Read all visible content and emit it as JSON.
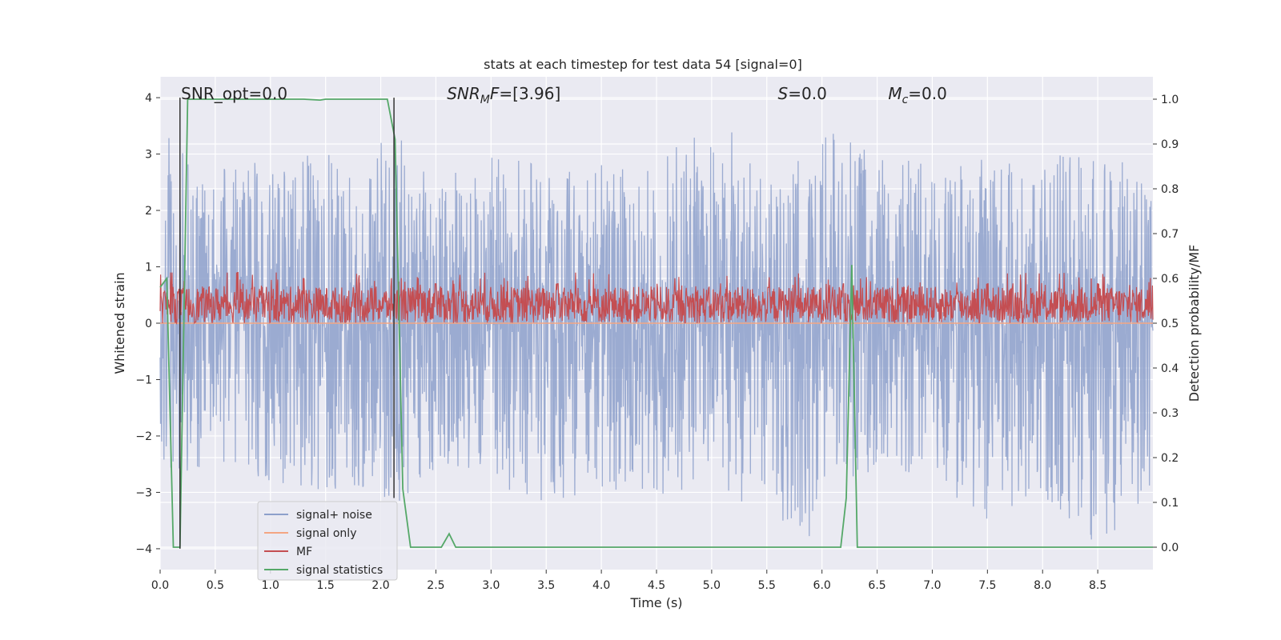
{
  "chart_data": {
    "type": "line",
    "title": "stats at each timestep for test data 54 [signal=0]",
    "xlabel": "Time (s)",
    "ylabel_left": "Whitened strain",
    "ylabel_right": "Detection probability/MF",
    "xlim": [
      0.0,
      9.0
    ],
    "ylim_left": [
      -4.37,
      4.37
    ],
    "ylim_right": [
      -0.05,
      1.05
    ],
    "x_ticks": [
      "0.0",
      "0.5",
      "1.0",
      "1.5",
      "2.0",
      "2.5",
      "3.0",
      "3.5",
      "4.0",
      "4.5",
      "5.0",
      "5.5",
      "6.0",
      "6.5",
      "7.0",
      "7.5",
      "8.0",
      "8.5"
    ],
    "y_left_ticks": [
      "4",
      "3",
      "2",
      "1",
      "0",
      "−1",
      "−2",
      "−3",
      "−4"
    ],
    "y_right_ticks": [
      "1.0",
      "0.9",
      "0.8",
      "0.7",
      "0.6",
      "0.5",
      "0.4",
      "0.3",
      "0.2",
      "0.1",
      "0.0"
    ],
    "grid": true,
    "legend_placement": "lower-left",
    "annotations": [
      {
        "prefix": "SNR_opt=0.0",
        "italic": "",
        "sub": "",
        "suffix": "",
        "x": 0.19
      },
      {
        "prefix": "",
        "italic": "SNR",
        "sub": "M",
        "suffix_italic": "F",
        "suffix": "=[3.96]",
        "x": 2.6
      },
      {
        "prefix": "",
        "italic": "S",
        "sub": "",
        "suffix": "=0.0",
        "x": 5.6
      },
      {
        "prefix": "",
        "italic": "M",
        "sub": "c",
        "suffix": "=0.0",
        "x": 6.6
      }
    ],
    "vlines": [
      {
        "x": 0.18,
        "y": [
          -4.0,
          4.0
        ]
      },
      {
        "x": 2.12,
        "y": [
          -3.1,
          4.0
        ]
      }
    ],
    "series": [
      {
        "name": "signal+ noise",
        "color": "#8da0cb",
        "axis": "left",
        "kind": "noise",
        "envelope_upper": [
          [
            0.0,
            2.4
          ],
          [
            0.1,
            3.6
          ],
          [
            0.3,
            2.6
          ],
          [
            0.5,
            2.7
          ],
          [
            0.8,
            3.0
          ],
          [
            1.0,
            2.8
          ],
          [
            1.5,
            3.1
          ],
          [
            1.9,
            2.8
          ],
          [
            2.0,
            3.3
          ],
          [
            2.2,
            3.3
          ],
          [
            2.5,
            2.6
          ],
          [
            3.0,
            3.0
          ],
          [
            3.5,
            2.8
          ],
          [
            4.0,
            2.9
          ],
          [
            4.5,
            2.7
          ],
          [
            5.0,
            4.0
          ],
          [
            5.5,
            2.4
          ],
          [
            6.0,
            3.5
          ],
          [
            6.5,
            3.0
          ],
          [
            7.0,
            2.8
          ],
          [
            7.5,
            3.0
          ],
          [
            8.0,
            3.1
          ],
          [
            8.5,
            2.9
          ],
          [
            9.0,
            2.9
          ]
        ],
        "envelope_lower": [
          [
            0.0,
            -2.0
          ],
          [
            0.05,
            -3.4
          ],
          [
            0.3,
            -2.6
          ],
          [
            0.5,
            -2.5
          ],
          [
            0.8,
            -2.7
          ],
          [
            1.0,
            -2.9
          ],
          [
            1.5,
            -3.0
          ],
          [
            2.0,
            -3.1
          ],
          [
            2.3,
            -3.3
          ],
          [
            2.5,
            -2.5
          ],
          [
            3.0,
            -2.8
          ],
          [
            3.5,
            -3.3
          ],
          [
            4.0,
            -2.9
          ],
          [
            4.5,
            -3.1
          ],
          [
            5.0,
            -2.8
          ],
          [
            5.3,
            -3.2
          ],
          [
            5.9,
            -3.8
          ],
          [
            6.0,
            -2.9
          ],
          [
            6.5,
            -2.6
          ],
          [
            7.0,
            -2.7
          ],
          [
            7.5,
            -3.6
          ],
          [
            8.0,
            -3.1
          ],
          [
            8.5,
            -4.0
          ],
          [
            9.0,
            -3.0
          ]
        ]
      },
      {
        "name": "signal only",
        "color": "#f4a582",
        "axis": "left",
        "kind": "flat",
        "values": [
          [
            0.0,
            0.0
          ],
          [
            9.0,
            0.0
          ]
        ]
      },
      {
        "name": "MF",
        "color": "#c44e52",
        "axis": "left",
        "kind": "mf",
        "band": [
          0.0,
          0.65
        ],
        "peaks": [
          [
            0.1,
            0.9
          ],
          [
            0.7,
            0.9
          ],
          [
            1.3,
            0.8
          ],
          [
            2.1,
            0.8
          ],
          [
            2.5,
            0.7
          ],
          [
            3.6,
            0.7
          ],
          [
            4.5,
            0.7
          ],
          [
            5.7,
            0.8
          ],
          [
            6.2,
            0.7
          ],
          [
            7.5,
            0.7
          ],
          [
            8.5,
            0.7
          ]
        ]
      },
      {
        "name": "signal statistics",
        "color": "#55a868",
        "axis": "right",
        "kind": "line",
        "values": [
          [
            0.0,
            0.58
          ],
          [
            0.06,
            0.6
          ],
          [
            0.12,
            0.0
          ],
          [
            0.18,
            0.0
          ],
          [
            0.25,
            1.0
          ],
          [
            0.5,
            1.0
          ],
          [
            1.0,
            1.0
          ],
          [
            1.3,
            1.0
          ],
          [
            1.45,
            0.998
          ],
          [
            1.5,
            1.0
          ],
          [
            2.0,
            1.0
          ],
          [
            2.06,
            1.0
          ],
          [
            2.13,
            0.91
          ],
          [
            2.2,
            0.13
          ],
          [
            2.27,
            0.0
          ],
          [
            2.35,
            0.0
          ],
          [
            2.55,
            0.0
          ],
          [
            2.62,
            0.03
          ],
          [
            2.68,
            0.0
          ],
          [
            3.0,
            0.0
          ],
          [
            4.0,
            0.0
          ],
          [
            5.0,
            0.0
          ],
          [
            6.0,
            0.0
          ],
          [
            6.17,
            0.0
          ],
          [
            6.22,
            0.11
          ],
          [
            6.27,
            0.63
          ],
          [
            6.32,
            0.0
          ],
          [
            7.0,
            0.0
          ],
          [
            8.0,
            0.0
          ],
          [
            9.0,
            0.0
          ]
        ]
      }
    ]
  }
}
